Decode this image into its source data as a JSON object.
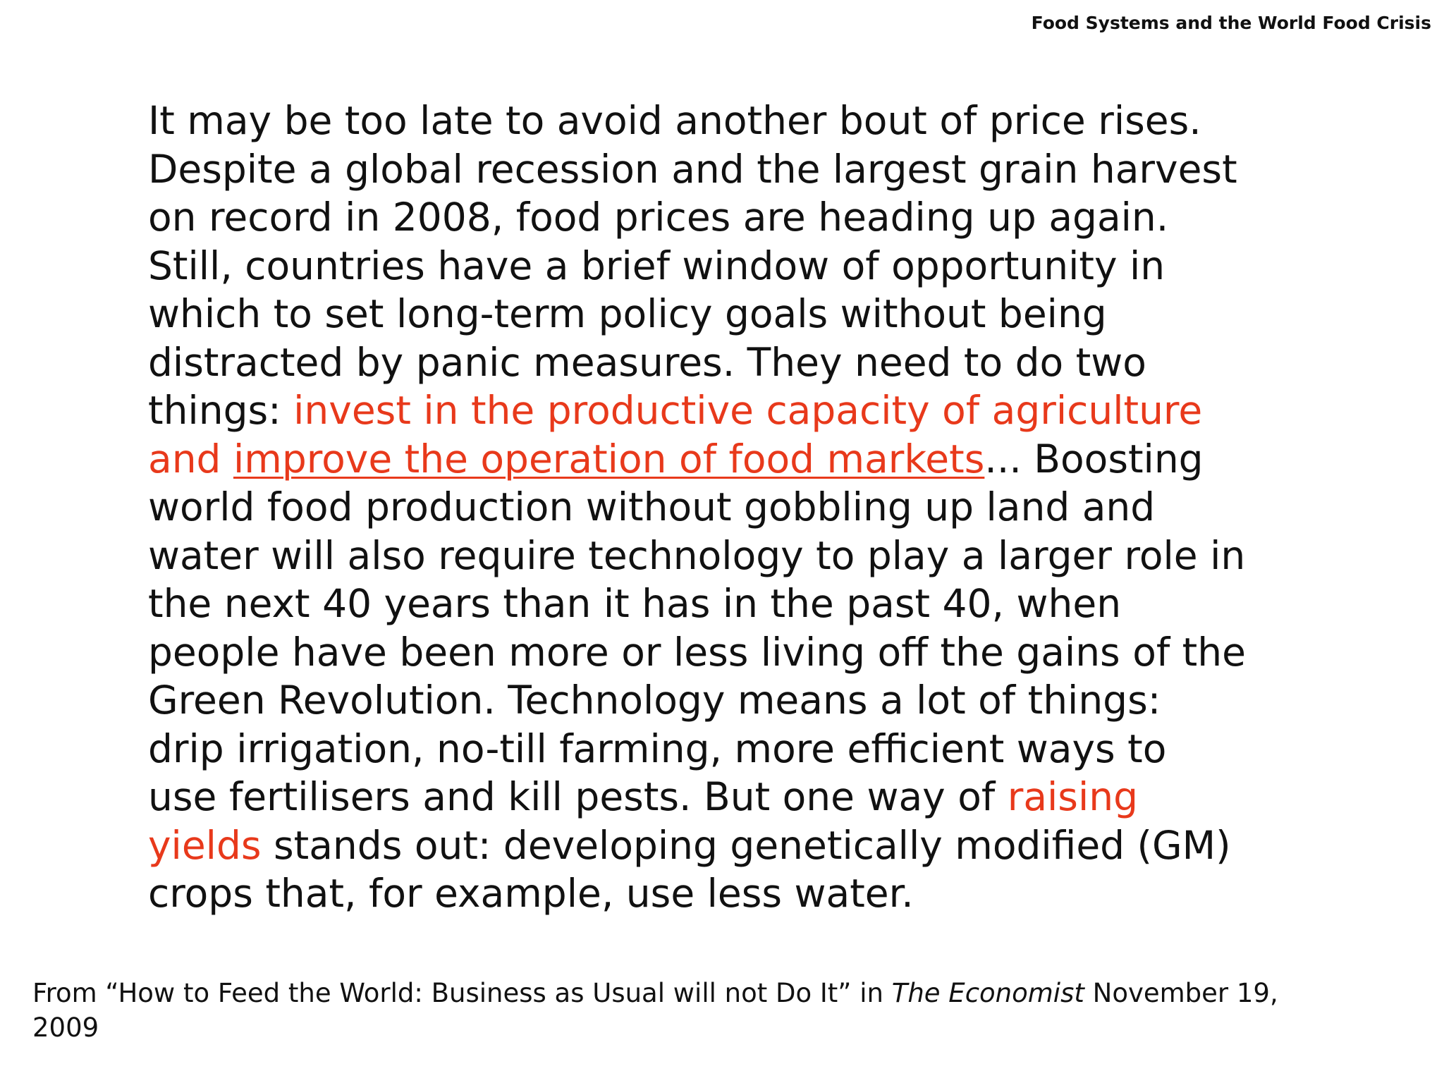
{
  "header": {
    "title": "Food Systems and the World Food Crisis"
  },
  "quote": {
    "line1": "It may be too late to avoid another bout of price rises.",
    "line2": "Despite a global recession and the largest grain harvest",
    "line3": "on record in 2008, food prices are heading up again.",
    "line4": "Still, countries have a brief window of opportunity in",
    "line5": "which to set long-term policy goals without being",
    "line6": "distracted by panic measures. They need to do two",
    "line7_a": "things: ",
    "line7_hl": "invest in the productive capacity of agriculture",
    "line8_hl": "and ",
    "line8_hl_ul": "improve the operation of food markets",
    "line8_b": "... Boosting",
    "line9": "world food production without gobbling up land and",
    "line10": "water will also require technology to play a larger role in",
    "line11": "the next 40 years than it has in the past 40, when",
    "line12": "people have been more or less living off the gains of the",
    "line13": "Green Revolution. Technology means a lot of things:",
    "line14": "drip irrigation, no-till farming, more efficient ways to",
    "line15_a": "use fertilisers and kill pests. But one way of ",
    "line15_hl": "raising",
    "line16_hl": "yields",
    "line16_b": " stands out: developing genetically modified (GM)",
    "line17": "crops that, for example, use less water."
  },
  "citation": {
    "prefix": "From “How to Feed the World: Business as Usual will not Do It” in ",
    "publication": "The Economist",
    "suffix": " November 19,",
    "line2": "2009"
  },
  "colors": {
    "highlight": "#e8391b",
    "text": "#111111",
    "background": "#ffffff"
  }
}
